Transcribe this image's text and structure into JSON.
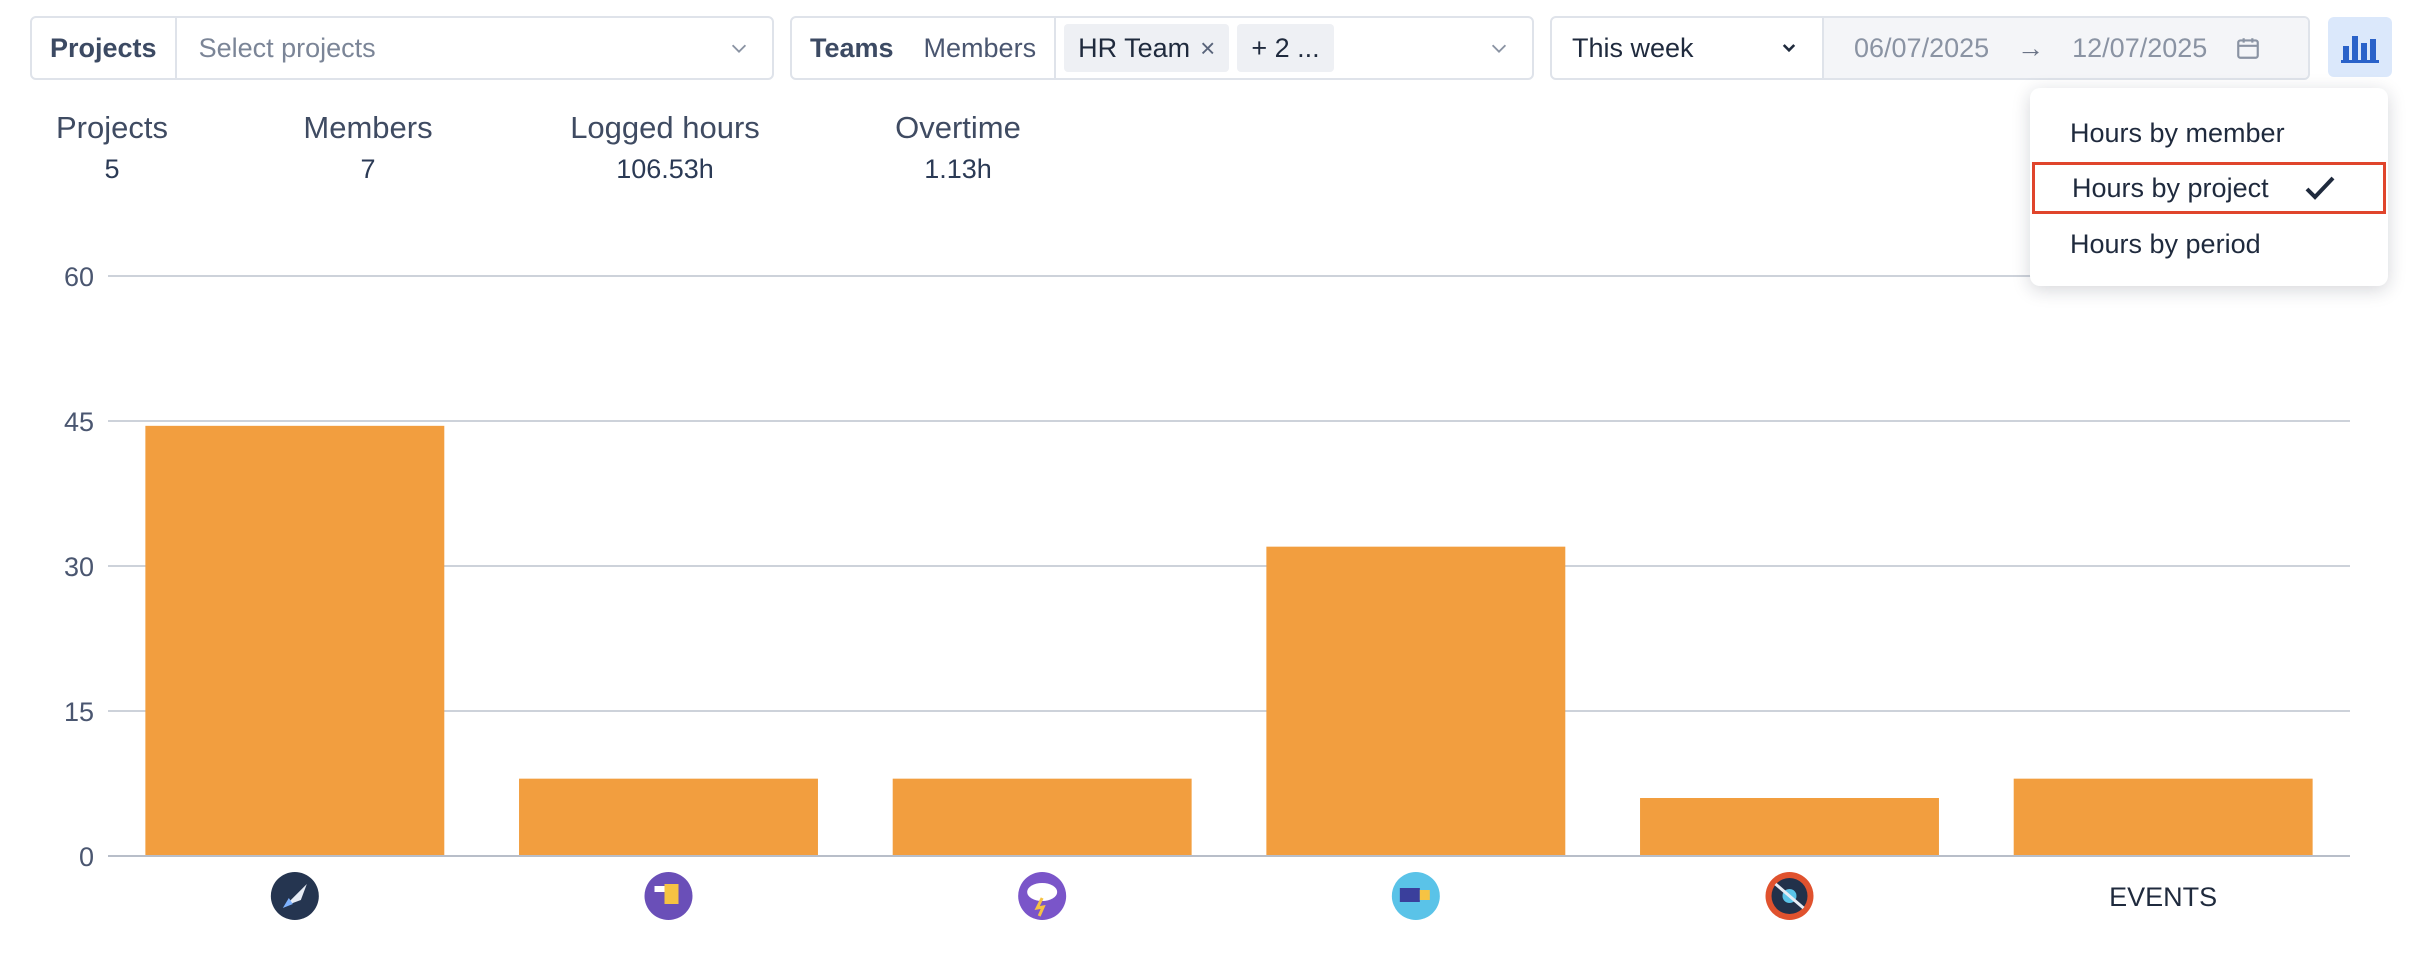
{
  "filters": {
    "projects": {
      "label": "Projects",
      "placeholder": "Select projects"
    },
    "teams": {
      "label": "Teams",
      "members_label": "Members",
      "tag": "HR Team",
      "tag_remove": "×",
      "more_tag": "+ 2 ..."
    },
    "period": {
      "selected": "This week",
      "date_from": "06/07/2025",
      "arrow": "→",
      "date_to": "12/07/2025"
    }
  },
  "stats": [
    {
      "label": "Projects",
      "value": "5"
    },
    {
      "label": "Members",
      "value": "7"
    },
    {
      "label": "Logged hours",
      "value": "106.53h"
    },
    {
      "label": "Overtime",
      "value": "1.13h"
    }
  ],
  "view_menu": {
    "items": [
      {
        "label": "Hours by member",
        "selected": false
      },
      {
        "label": "Hours by project",
        "selected": true
      },
      {
        "label": "Hours by period",
        "selected": false
      }
    ]
  },
  "colors": {
    "bar": "#f29e3f",
    "accent": "#2a62c9",
    "highlight": "#e0452c"
  },
  "chart_data": {
    "type": "bar",
    "ylim": [
      0,
      60
    ],
    "yticks": [
      0,
      15,
      30,
      45,
      60
    ],
    "grid": true,
    "categories": [
      {
        "icon": "rocket-icon",
        "label": ""
      },
      {
        "icon": "flag-icon",
        "label": ""
      },
      {
        "icon": "storm-cloud-icon",
        "label": ""
      },
      {
        "icon": "card-icon",
        "label": ""
      },
      {
        "icon": "vinyl-icon",
        "label": ""
      },
      {
        "icon": "",
        "label": "EVENTS"
      }
    ],
    "values": [
      44.5,
      8,
      8,
      32,
      6,
      8
    ]
  }
}
